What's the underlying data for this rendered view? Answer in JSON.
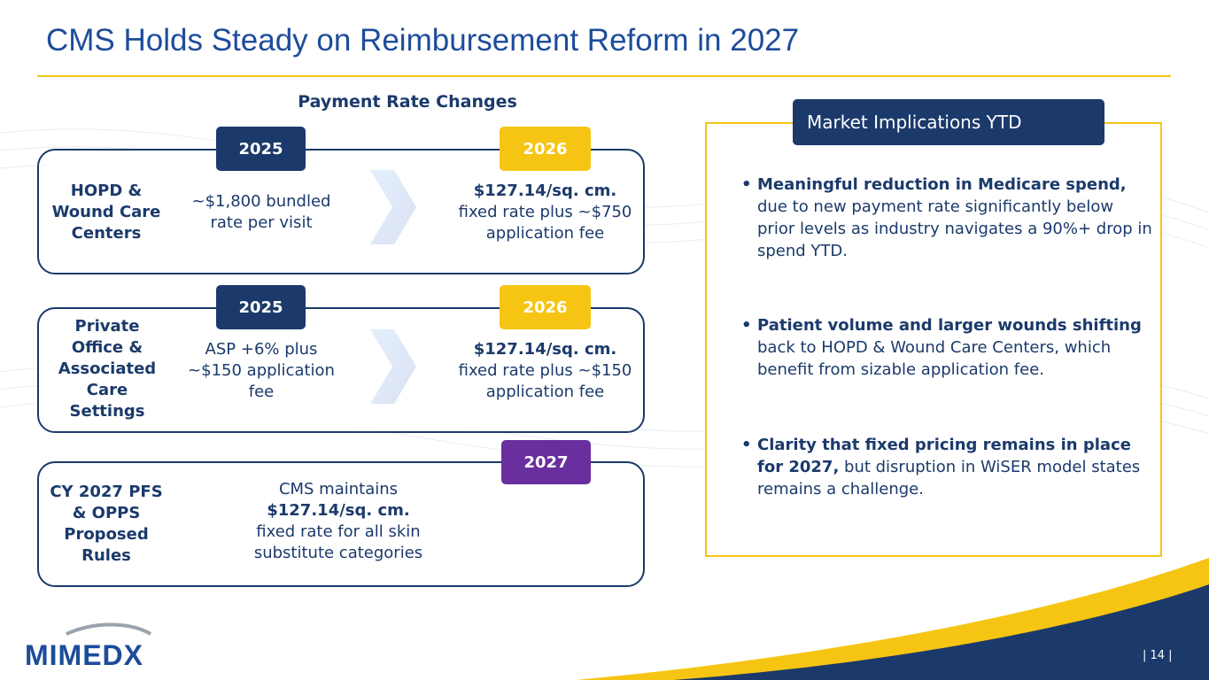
{
  "title": "CMS Holds Steady on Reimbursement Reform in 2027",
  "section_title": "Payment Rate Changes",
  "rows": [
    {
      "label": "HOPD & Wound Care Centers",
      "from_year": "2025",
      "from_text": "~$1,800 bundled rate per visit",
      "to_year": "2026",
      "to_bold": "$127.14/sq. cm.",
      "to_text": "fixed rate plus ~$750 application fee"
    },
    {
      "label": "Private Office & Associated Care Settings",
      "from_year": "2025",
      "from_text": "ASP +6% plus ~$150 application fee",
      "to_year": "2026",
      "to_bold": "$127.14/sq. cm.",
      "to_text": "fixed rate plus ~$150 application fee"
    }
  ],
  "proposed": {
    "label": "CY 2027 PFS & OPPS Proposed Rules",
    "year": "2027",
    "text_before": "CMS maintains",
    "bold": "$127.14/sq. cm.",
    "text_after": "fixed rate for all skin substitute categories"
  },
  "implications": {
    "title": "Market Implications YTD",
    "bullets": [
      {
        "bold": "Meaningful reduction in Medicare spend,",
        "text": "due to new payment rate significantly below prior levels as industry navigates a 90%+ drop in spend YTD."
      },
      {
        "bold": "Patient volume and larger wounds shifting",
        "text": "back to HOPD & Wound Care Centers, which benefit from sizable application fee."
      },
      {
        "bold": "Clarity that fixed pricing remains in place for 2027,",
        "text": "but disruption in WiSER model states remains a challenge."
      }
    ]
  },
  "logo": "MIMEDX",
  "page_number": "| 14 |"
}
